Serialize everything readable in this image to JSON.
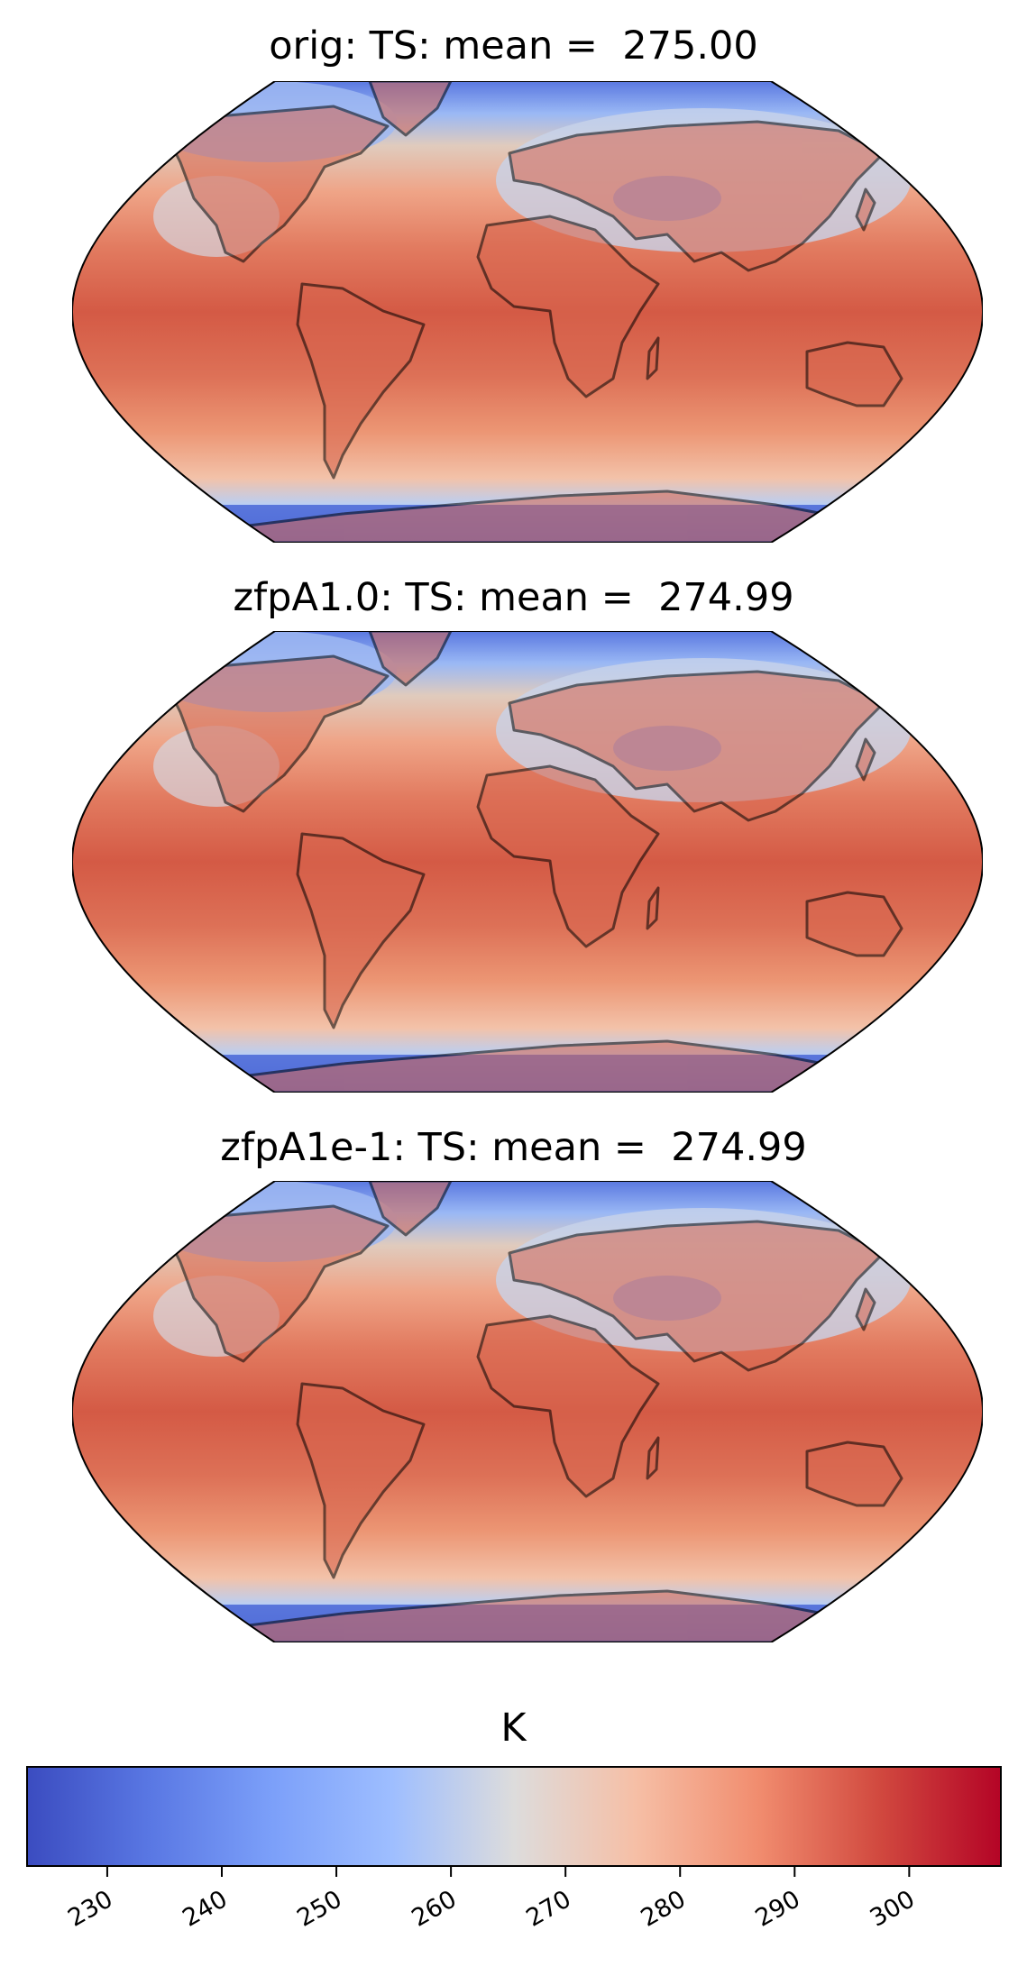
{
  "panels": [
    {
      "title": "orig: TS: mean =  275.00"
    },
    {
      "title": "zfpA1.0: TS: mean =  274.99"
    },
    {
      "title": "zfpA1e-1: TS: mean =  274.99"
    }
  ],
  "projection": "Robinson",
  "colormap": "coolwarm",
  "colors": {
    "cold": "#3b4cc0",
    "mid": "#dddddd",
    "warm": "#b40426",
    "coastline": "#000000"
  },
  "colorbar": {
    "label": "K",
    "orientation": "horizontal",
    "range": [
      223,
      308
    ],
    "ticks": [
      230,
      240,
      250,
      260,
      270,
      280,
      290,
      300
    ]
  }
}
